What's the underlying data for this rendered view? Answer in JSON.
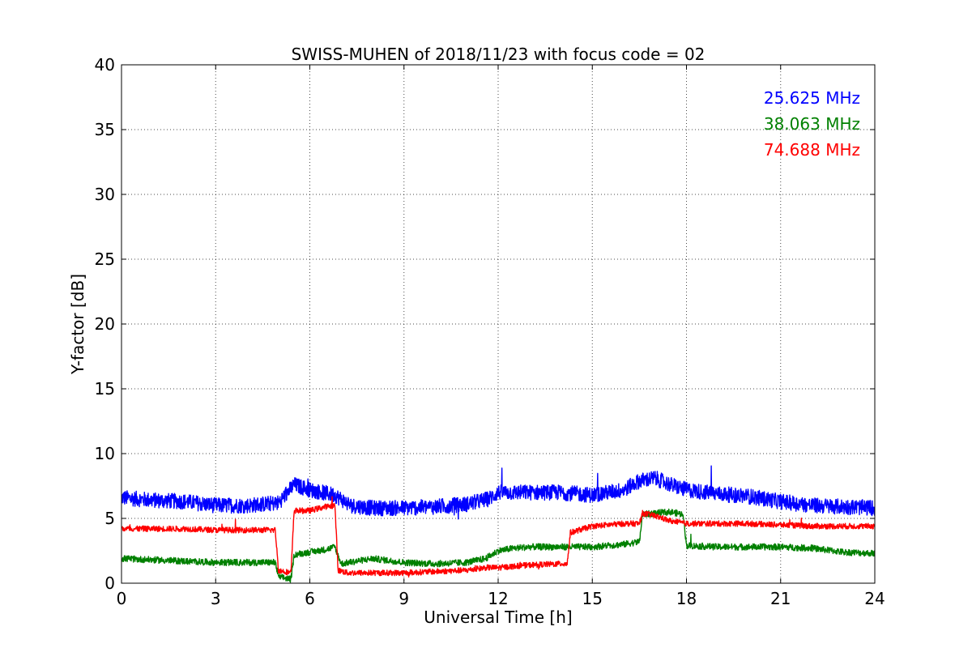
{
  "chart_data": {
    "type": "line",
    "title": "SWISS-MUHEN of 2018/11/23 with focus code = 02",
    "xlabel": "Universal Time [h]",
    "ylabel": "Y-factor [dB]",
    "xlim": [
      0,
      24
    ],
    "ylim": [
      0,
      40
    ],
    "xticks": [
      "0",
      "3",
      "6",
      "9",
      "12",
      "15",
      "18",
      "21",
      "24"
    ],
    "yticks": [
      "0",
      "5",
      "10",
      "15",
      "20",
      "25",
      "30",
      "35",
      "40"
    ],
    "grid": true,
    "legend_position": "top-right",
    "series": [
      {
        "name": "25.625 MHz",
        "color": "#0000ff",
        "x": [
          0,
          1,
          2,
          3,
          4,
          5,
          5.5,
          6,
          6.8,
          7.3,
          8,
          9,
          10,
          11,
          11.7,
          12,
          13,
          14,
          15,
          16,
          16.5,
          17,
          17.5,
          18,
          19,
          20,
          21,
          22,
          23,
          24
        ],
        "y": [
          6.6,
          6.4,
          6.3,
          6.0,
          6.0,
          6.2,
          7.6,
          7.2,
          6.8,
          6.0,
          5.8,
          5.8,
          5.9,
          6.1,
          6.5,
          7.0,
          7.0,
          7.0,
          6.8,
          7.2,
          7.9,
          8.1,
          7.6,
          7.2,
          6.9,
          6.7,
          6.3,
          6.0,
          5.9,
          5.8
        ],
        "noise": 0.6
      },
      {
        "name": "38.063 MHz",
        "color": "#008000",
        "x": [
          0,
          1,
          2,
          3,
          4,
          4.9,
          5.0,
          5.4,
          5.5,
          6,
          6.5,
          6.8,
          7.0,
          7.5,
          8,
          9,
          10,
          11,
          11.6,
          12,
          12.5,
          13,
          14,
          15,
          16,
          16.5,
          16.6,
          17,
          17.5,
          17.9,
          18,
          19,
          20,
          21,
          22,
          23,
          24
        ],
        "y": [
          1.9,
          1.8,
          1.7,
          1.6,
          1.6,
          1.6,
          0.5,
          0.3,
          2.2,
          2.4,
          2.6,
          2.8,
          1.5,
          1.7,
          1.9,
          1.6,
          1.5,
          1.6,
          1.9,
          2.5,
          2.7,
          2.8,
          2.8,
          2.8,
          3.0,
          3.2,
          5.3,
          5.4,
          5.5,
          5.3,
          2.9,
          2.8,
          2.8,
          2.8,
          2.7,
          2.4,
          2.3
        ],
        "noise": 0.25
      },
      {
        "name": "74.688 MHz",
        "color": "#ff0000",
        "x": [
          0,
          1,
          2,
          3,
          4,
          4.9,
          5.0,
          5.4,
          5.5,
          6,
          6.5,
          6.8,
          6.9,
          7.2,
          7.5,
          8,
          9,
          10,
          11,
          11.6,
          12,
          13,
          14,
          14.2,
          14.3,
          15,
          16,
          16.5,
          16.6,
          17,
          17.5,
          18,
          19,
          20,
          21,
          22,
          23,
          24
        ],
        "y": [
          4.2,
          4.2,
          4.2,
          4.1,
          4.1,
          4.1,
          1.0,
          0.8,
          5.6,
          5.6,
          5.9,
          6.0,
          1.0,
          0.8,
          0.8,
          0.8,
          0.8,
          0.9,
          1.0,
          1.2,
          1.2,
          1.4,
          1.5,
          1.5,
          3.9,
          4.4,
          4.6,
          4.6,
          5.4,
          5.2,
          4.8,
          4.6,
          4.6,
          4.6,
          4.5,
          4.4,
          4.4,
          4.4
        ],
        "noise": 0.22
      }
    ]
  }
}
